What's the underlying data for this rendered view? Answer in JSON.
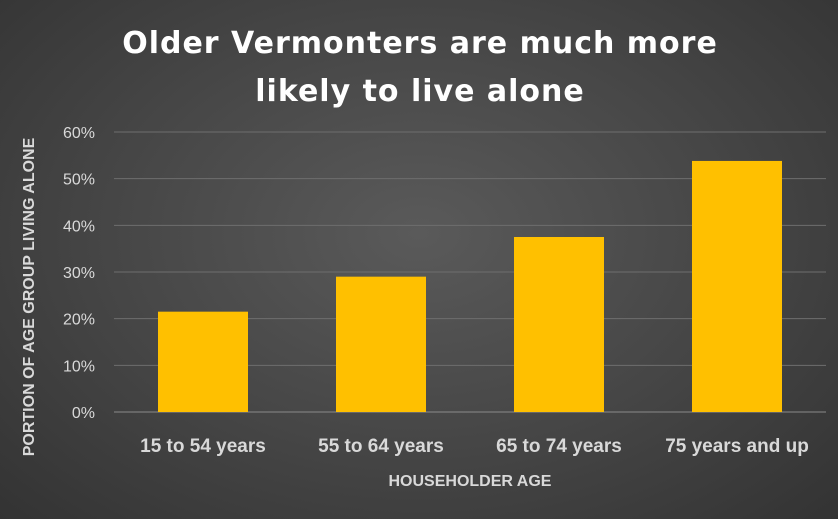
{
  "chart_data": {
    "type": "bar",
    "title": "Older Vermonters are much more likely to live alone",
    "xlabel": "HOUSEHOLDER AGE",
    "ylabel": "PORTION OF AGE GROUP LIVING ALONE",
    "categories": [
      "15 to 54 years",
      "55 to 64 years",
      "65 to 74 years",
      "75 years and up"
    ],
    "values": [
      21.5,
      29.0,
      37.5,
      53.8
    ],
    "ylim": [
      0,
      60
    ],
    "yticks": [
      "0%",
      "10%",
      "20%",
      "30%",
      "40%",
      "50%",
      "60%"
    ],
    "grid": true,
    "legend": "none",
    "colors": {
      "bar": "#FFC000",
      "grid": "#6e6e6e",
      "text": "#d9d9d9",
      "title": "#ffffff"
    }
  }
}
